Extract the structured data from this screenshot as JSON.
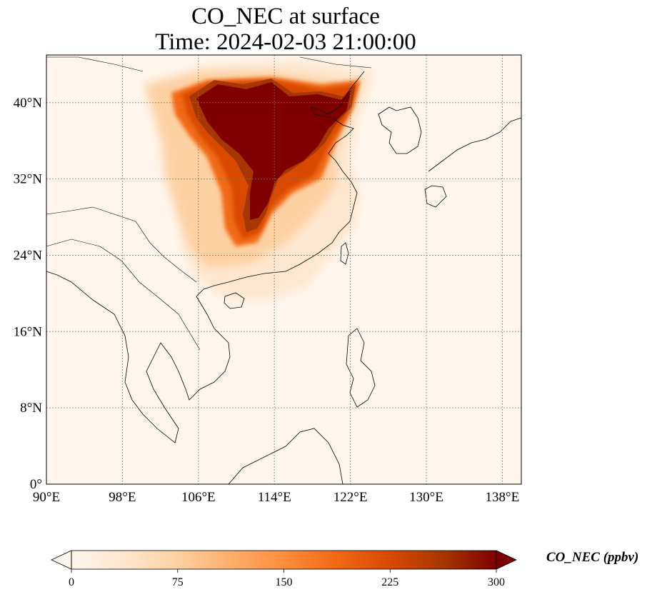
{
  "title": {
    "line1": "CO_NEC at surface",
    "line2": "Time: 2024-02-03 21:00:00"
  },
  "map": {
    "extent": {
      "lon_min": 90,
      "lon_max": 140,
      "lat_min": 0,
      "lat_max": 45
    },
    "lon_ticks": [
      {
        "value": 90,
        "label": "90°E"
      },
      {
        "value": 98,
        "label": "98°E"
      },
      {
        "value": 106,
        "label": "106°E"
      },
      {
        "value": 114,
        "label": "114°E"
      },
      {
        "value": 122,
        "label": "122°E"
      },
      {
        "value": 130,
        "label": "130°E"
      },
      {
        "value": 138,
        "label": "138°E"
      }
    ],
    "lat_ticks": [
      {
        "value": 0,
        "label": "0°"
      },
      {
        "value": 8,
        "label": "8°N"
      },
      {
        "value": 16,
        "label": "16°N"
      },
      {
        "value": 24,
        "label": "24°N"
      },
      {
        "value": 32,
        "label": "32°N"
      },
      {
        "value": 40,
        "label": "40°N"
      }
    ],
    "gridlines": true,
    "background_color": "#fff5eb",
    "plume_colors": [
      "#fee6ce",
      "#fdd0a2",
      "#fdae6b",
      "#f16913",
      "#d94801",
      "#a63603",
      "#7f0000"
    ]
  },
  "colorbar": {
    "label": "CO_NEC (ppbv)",
    "min": 0,
    "max": 300,
    "extend": "both",
    "ticks": [
      {
        "value": 0,
        "label": "0"
      },
      {
        "value": 75,
        "label": "75"
      },
      {
        "value": 150,
        "label": "150"
      },
      {
        "value": 225,
        "label": "225"
      },
      {
        "value": 300,
        "label": "300"
      }
    ],
    "colormap": [
      "#fff5eb",
      "#fee6ce",
      "#fdd0a2",
      "#fdae6b",
      "#fd8d3c",
      "#f16913",
      "#d94801",
      "#a63603",
      "#7f0000"
    ]
  }
}
